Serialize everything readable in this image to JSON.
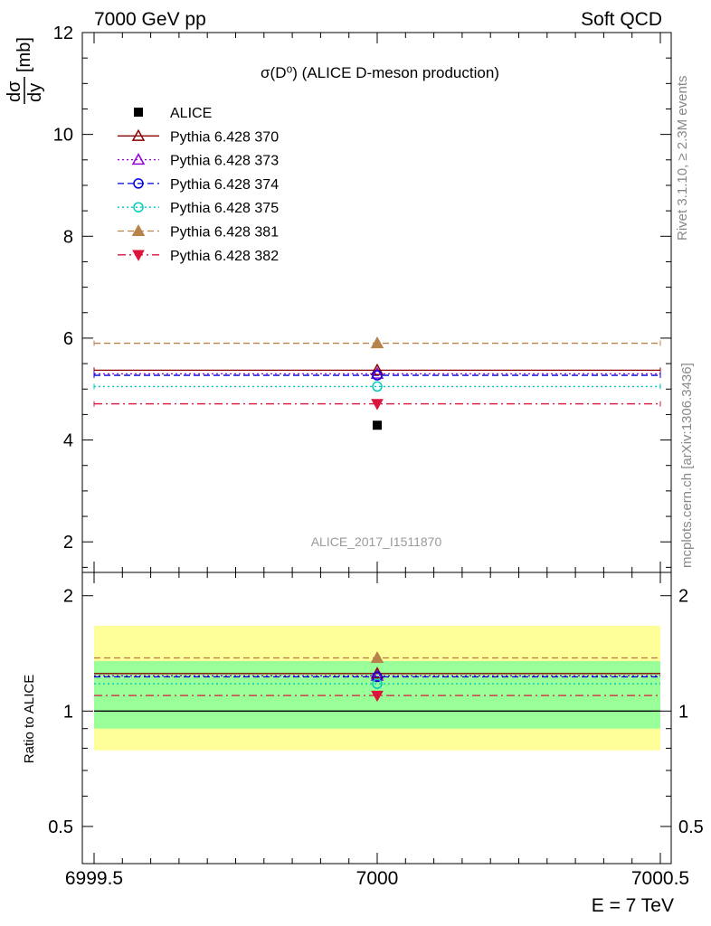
{
  "header": {
    "left": "7000 GeV pp",
    "right": "Soft QCD"
  },
  "side_labels": {
    "rivet": "Rivet 3.1.10, ≥ 2.3M events",
    "mcplots": "mcplots.cern.ch [arXiv:1306.3436]"
  },
  "chart_data": [
    {
      "type": "scatter",
      "panel": "main",
      "title": "σ(D⁰) (ALICE D-meson production)",
      "ylabel": "dσ/dy [mb]",
      "ylabel_num": "dσ",
      "ylabel_den": "dy",
      "ylabel_unit": "[mb]",
      "xlim": [
        6999.5,
        7000.5
      ],
      "ylim": [
        1.4,
        12
      ],
      "yticks": [
        2,
        4,
        6,
        8,
        10,
        12
      ],
      "watermark": "ALICE_2017_I1511870",
      "legend_position": "top-left",
      "data": {
        "name": "ALICE",
        "x": 7000,
        "y": 4.29,
        "color": "#000000",
        "marker": "square"
      },
      "series": [
        {
          "name": "Pythia 6.428 370",
          "x": 7000,
          "y": 5.37,
          "color": "#8b0000",
          "marker": "triangle-open",
          "dash": "solid"
        },
        {
          "name": "Pythia 6.428 373",
          "x": 7000,
          "y": 5.3,
          "color": "#9400d3",
          "marker": "triangle-open",
          "dash": "dotted"
        },
        {
          "name": "Pythia 6.428 374",
          "x": 7000,
          "y": 5.27,
          "color": "#0000dd",
          "marker": "circle-open",
          "dash": "dashed"
        },
        {
          "name": "Pythia 6.428 375",
          "x": 7000,
          "y": 5.05,
          "color": "#00ccbb",
          "marker": "circle-open",
          "dash": "dotted"
        },
        {
          "name": "Pythia 6.428 381",
          "x": 7000,
          "y": 5.9,
          "color": "#b8834a",
          "marker": "triangle-filled",
          "dash": "dashed"
        },
        {
          "name": "Pythia 6.428 382",
          "x": 7000,
          "y": 4.71,
          "color": "#dc143c",
          "marker": "triangle-down-filled",
          "dash": "dashdot"
        }
      ]
    },
    {
      "type": "scatter",
      "panel": "ratio",
      "ylabel": "Ratio to ALICE",
      "xlabel": "E = 7 TeV",
      "xlim": [
        6999.5,
        7000.5
      ],
      "xticks": [
        "6999.5",
        "7000",
        "7000.5"
      ],
      "ylim": [
        0.4,
        2.3
      ],
      "ylog": true,
      "yticks": [
        "0.5",
        "1",
        "2"
      ],
      "bands": [
        {
          "lo": 0.79,
          "hi": 1.67,
          "color": "#ffff99"
        },
        {
          "lo": 0.9,
          "hi": 1.35,
          "color": "#99ff99"
        }
      ],
      "series": [
        {
          "name": "Pythia 6.428 370",
          "y": 1.253
        },
        {
          "name": "Pythia 6.428 373",
          "y": 1.236
        },
        {
          "name": "Pythia 6.428 374",
          "y": 1.228
        },
        {
          "name": "Pythia 6.428 375",
          "y": 1.178
        },
        {
          "name": "Pythia 6.428 381",
          "y": 1.376
        },
        {
          "name": "Pythia 6.428 382",
          "y": 1.098
        }
      ]
    }
  ]
}
